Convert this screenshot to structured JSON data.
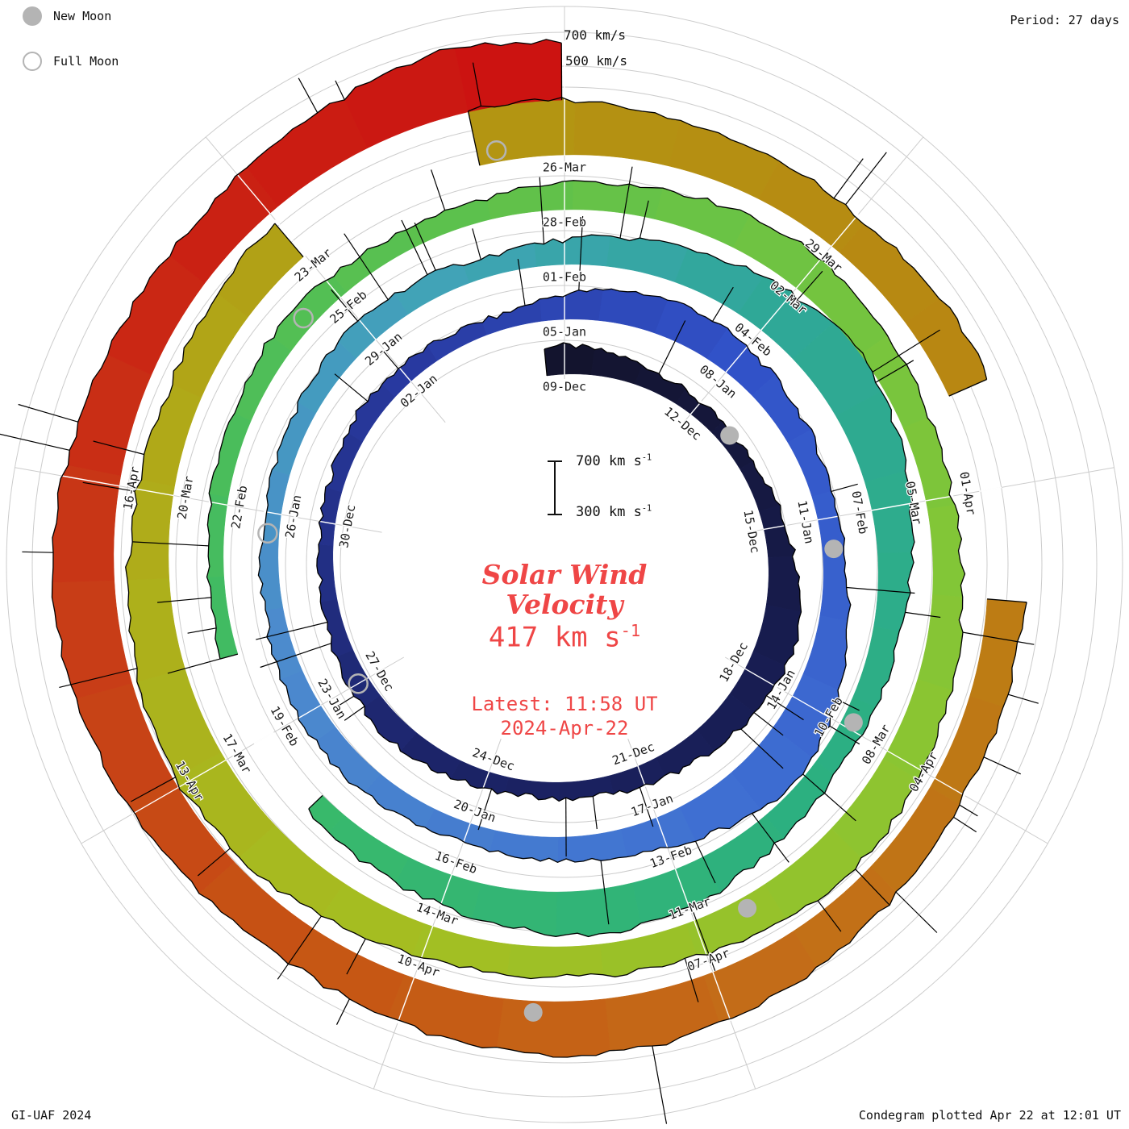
{
  "legend": {
    "new_moon": "New Moon",
    "full_moon": "Full Moon"
  },
  "header": {
    "period": "Period: 27 days"
  },
  "footer": {
    "credit": "GI-UAF 2024",
    "plotted": "Condegram plotted Apr 22 at 12:01 UT"
  },
  "ring_scale": {
    "outer": "700 km/s",
    "inner": "500 km/s"
  },
  "center": {
    "title_line1": "Solar Wind",
    "title_line2": "Velocity",
    "value": "417 km s",
    "value_sup": "-1",
    "latest": "Latest: 11:58 UT",
    "date": "2024-Apr-22",
    "scale_top": "700 km s",
    "scale_bottom": "300 km s",
    "scale_sup": "-1"
  },
  "colors": {
    "accent": "#ef4646",
    "grid": "#cccccc",
    "edge": "#000000",
    "moon": "#b4b4b4",
    "label": "#1a1a1a"
  },
  "chart_data": {
    "type": "area",
    "subtype": "condegram-spiral",
    "title": "Solar Wind Velocity",
    "direction": "clockwise",
    "start_angle_deg": 0,
    "period_days": 27,
    "start_date": "2023-12-09",
    "end_date": "2024-04-22",
    "latest_value_km_s": 417,
    "latest_time": "11:58 UT 2024-Apr-22",
    "value_range_km_s": [
      300,
      700
    ],
    "ring_levels_km_s": [
      500,
      700
    ],
    "date_ticks": [
      {
        "day": 0,
        "label": "09-Dec"
      },
      {
        "day": 3,
        "label": "12-Dec"
      },
      {
        "day": 6,
        "label": "15-Dec"
      },
      {
        "day": 9,
        "label": "18-Dec"
      },
      {
        "day": 12,
        "label": "21-Dec"
      },
      {
        "day": 15,
        "label": "24-Dec"
      },
      {
        "day": 18,
        "label": "27-Dec"
      },
      {
        "day": 21,
        "label": "30-Dec"
      },
      {
        "day": 24,
        "label": "02-Jan"
      },
      {
        "day": 27,
        "label": "05-Jan"
      },
      {
        "day": 30,
        "label": "08-Jan"
      },
      {
        "day": 33,
        "label": "11-Jan"
      },
      {
        "day": 36,
        "label": "14-Jan"
      },
      {
        "day": 39,
        "label": "17-Jan"
      },
      {
        "day": 42,
        "label": "20-Jan"
      },
      {
        "day": 45,
        "label": "23-Jan"
      },
      {
        "day": 48,
        "label": "26-Jan"
      },
      {
        "day": 51,
        "label": "29-Jan"
      },
      {
        "day": 54,
        "label": "01-Feb"
      },
      {
        "day": 57,
        "label": "04-Feb"
      },
      {
        "day": 60,
        "label": "07-Feb"
      },
      {
        "day": 63,
        "label": "10-Feb"
      },
      {
        "day": 66,
        "label": "13-Feb"
      },
      {
        "day": 69,
        "label": "16-Feb"
      },
      {
        "day": 72,
        "label": "19-Feb"
      },
      {
        "day": 75,
        "label": "22-Feb"
      },
      {
        "day": 78,
        "label": "25-Feb"
      },
      {
        "day": 81,
        "label": "28-Feb"
      },
      {
        "day": 84,
        "label": "02-Mar"
      },
      {
        "day": 87,
        "label": "05-Mar"
      },
      {
        "day": 90,
        "label": "08-Mar"
      },
      {
        "day": 93,
        "label": "11-Mar"
      },
      {
        "day": 96,
        "label": "14-Mar"
      },
      {
        "day": 99,
        "label": "17-Mar"
      },
      {
        "day": 102,
        "label": "20-Mar"
      },
      {
        "day": 105,
        "label": "23-Mar"
      },
      {
        "day": 108,
        "label": "26-Mar"
      },
      {
        "day": 111,
        "label": "29-Mar"
      },
      {
        "day": 114,
        "label": "01-Apr"
      },
      {
        "day": 117,
        "label": "04-Apr"
      },
      {
        "day": 120,
        "label": "07-Apr"
      },
      {
        "day": 123,
        "label": "10-Apr"
      },
      {
        "day": 126,
        "label": "13-Apr"
      },
      {
        "day": 129,
        "label": "16-Apr"
      }
    ],
    "new_moon_days": [
      3.9,
      33.5,
      62.9,
      92.4,
      121.8
    ],
    "full_moon_days": [
      18.0,
      47.7,
      77.5,
      107.3
    ],
    "colormap": [
      {
        "day": 0,
        "color": "#13142e"
      },
      {
        "day": 8,
        "color": "#171c4e"
      },
      {
        "day": 16,
        "color": "#1c2468"
      },
      {
        "day": 24,
        "color": "#28399f"
      },
      {
        "day": 30,
        "color": "#3152c8"
      },
      {
        "day": 38,
        "color": "#3f6fd2"
      },
      {
        "day": 46,
        "color": "#4c8bcd"
      },
      {
        "day": 52,
        "color": "#41a3b8"
      },
      {
        "day": 57,
        "color": "#2fa897"
      },
      {
        "day": 64,
        "color": "#2cb080"
      },
      {
        "day": 72,
        "color": "#3aba68"
      },
      {
        "day": 80,
        "color": "#5ec14c"
      },
      {
        "day": 88,
        "color": "#84c636"
      },
      {
        "day": 96,
        "color": "#a4bf22"
      },
      {
        "day": 102,
        "color": "#b0ab19"
      },
      {
        "day": 108,
        "color": "#b39312"
      },
      {
        "day": 114,
        "color": "#ba8312"
      },
      {
        "day": 120,
        "color": "#c46a18"
      },
      {
        "day": 124,
        "color": "#c65514"
      },
      {
        "day": 128,
        "color": "#c83a17"
      },
      {
        "day": 131,
        "color": "#ca2413"
      },
      {
        "day": 135,
        "color": "#cc1111"
      }
    ],
    "velocity_daily_km_s": [
      470,
      440,
      410,
      390,
      380,
      400,
      430,
      480,
      530,
      510,
      470,
      440,
      420,
      400,
      390,
      400,
      420,
      440,
      420,
      400,
      385,
      380,
      395,
      415,
      405,
      390,
      385,
      450,
      500,
      520,
      490,
      460,
      435,
      420,
      440,
      490,
      560,
      610,
      550,
      480,
      445,
      425,
      415,
      430,
      455,
      440,
      420,
      405,
      395,
      405,
      425,
      450,
      435,
      415,
      445,
      490,
      530,
      580,
      630,
      590,
      530,
      480,
      450,
      435,
      445,
      485,
      545,
      570,
      530,
      485,
      455,
      425,
      null,
      395,
      385,
      400,
      420,
      440,
      430,
      415,
      425,
      455,
      475,
      505,
      525,
      495,
      465,
      455,
      475,
      505,
      535,
      565,
      545,
      505,
      485,
      475,
      495,
      535,
      575,
      605,
      585,
      545,
      515,
      495,
      525,
      565,
      null,
      645,
      625,
      585,
      555,
      535,
      545,
      560,
      null,
      525,
      505,
      495,
      515,
      555,
      595,
      625,
      605,
      575,
      545,
      565,
      605,
      645,
      665,
      635,
      595,
      565,
      585,
      625,
      685,
      640
    ]
  }
}
